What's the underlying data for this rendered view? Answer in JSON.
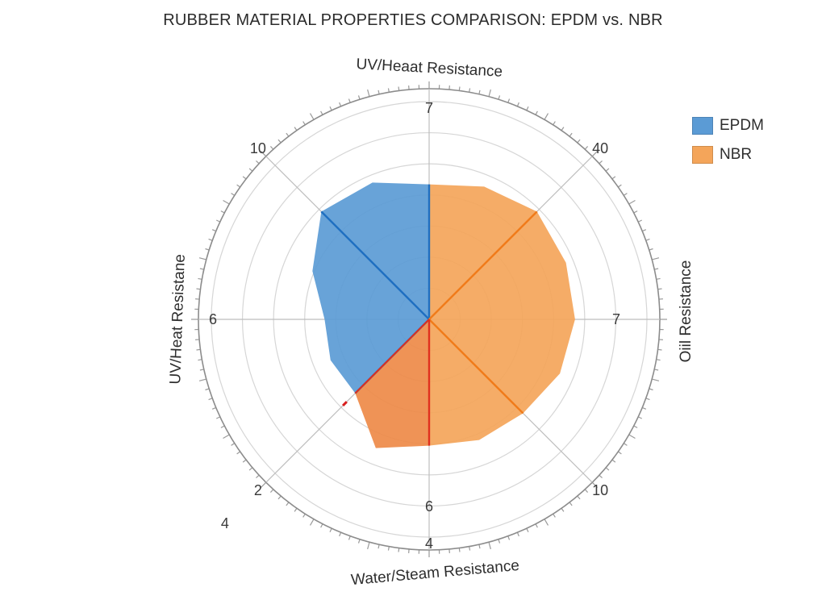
{
  "chart_data": {
    "type": "radar",
    "title": "RUBBER MATERIAL PROPERTIES COMPARISON: EPDM vs. NBR",
    "axes": [
      {
        "label": "UV/Heaat Resistance",
        "tick": "7"
      },
      {
        "label": "",
        "tick": "40"
      },
      {
        "label": "Oiil Resistance",
        "tick": "7"
      },
      {
        "label": "",
        "tick": "10"
      },
      {
        "label": "Water/Steam Resistance",
        "tick": "6"
      },
      {
        "label": "",
        "tick": "2"
      },
      {
        "label": "UV/Heat Resistane",
        "tick": "6"
      },
      {
        "label": "",
        "tick": "10"
      }
    ],
    "outer_ticks": [
      "4",
      "4"
    ],
    "rlim": [
      0,
      10
    ],
    "rings": 7,
    "series": [
      {
        "name": "EPDM",
        "color": "#5b9bd5",
        "line_color": "#1f6fc1",
        "values": [
          6.2,
          null,
          null,
          null,
          null,
          4.8,
          4.8,
          7.0
        ],
        "edge_values": [
          6.2,
          5.8,
          4.7,
          6.8,
          5.4,
          4.9,
          6.6
        ]
      },
      {
        "name": "NBR",
        "color": "#f4a55a",
        "line_color": "#f07b1a",
        "values": [
          6.2,
          7.0,
          5.0,
          6.1,
          5.8,
          4.8,
          null,
          null
        ],
        "edge_values": [
          6.6,
          6.8,
          6.7,
          6.5,
          6.0,
          6.4
        ]
      }
    ],
    "legend_position": "top-right",
    "grid": true
  }
}
